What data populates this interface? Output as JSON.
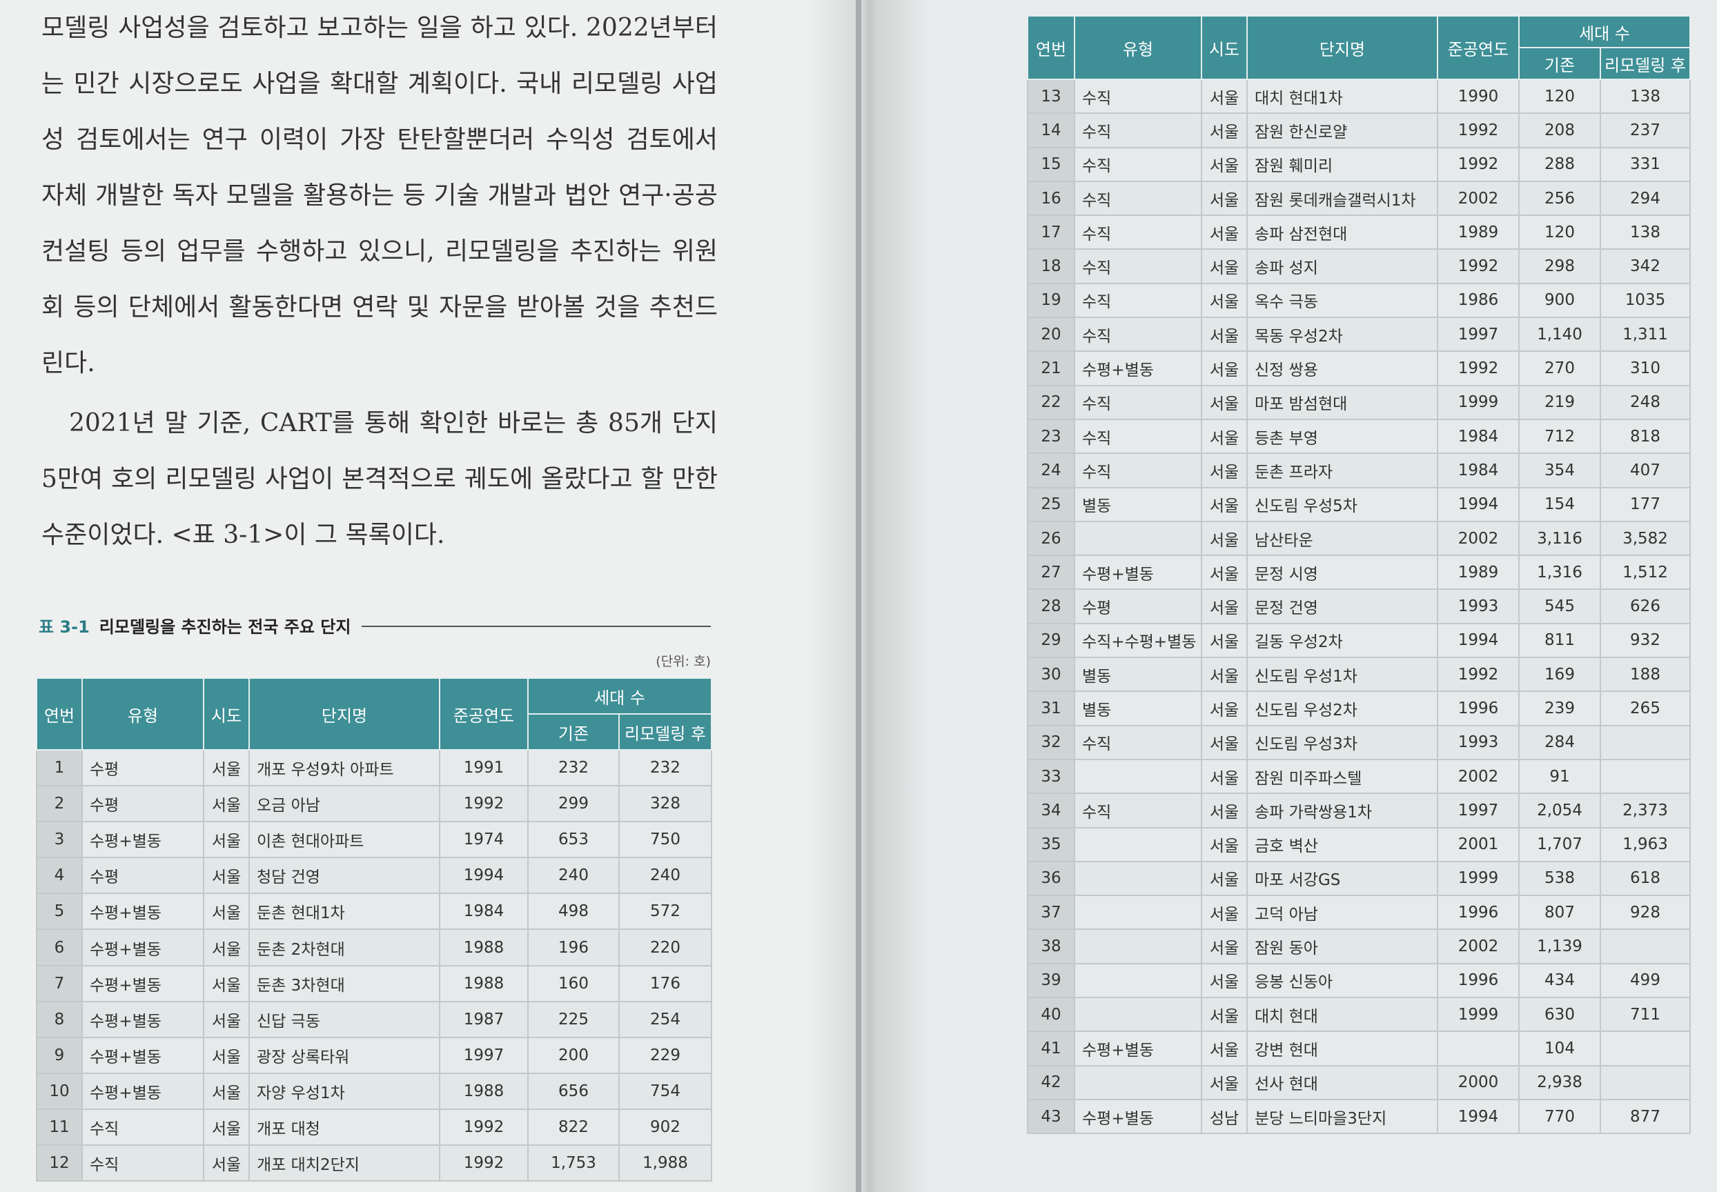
{
  "body": {
    "paragraph1": "모델링 사업성을 검토하고 보고하는 일을 하고 있다. 2022년부터는 민간 시장으로도 사업을 확대할 계획이다. 국내 리모델링 사업성 검토에서는 연구 이력이 가장 탄탄할뿐더러 수익성 검토에서 자체 개발한 독자 모델을 활용하는 등 기술 개발과 법안 연구·공공컨설팅 등의 업무를 수행하고 있으니, 리모델링을 추진하는 위원회 등의 단체에서 활동한다면 연락 및 자문을 받아볼 것을 추천드린다.",
    "paragraph2": "2021년 말 기준, CART를 통해 확인한 바로는 총 85개 단지 5만여 호의 리모델링 사업이 본격적으로 궤도에 올랐다고 할 만한 수준이었다. <표 3-1>이 그 목록이다."
  },
  "caption": {
    "number": "표 3-1",
    "title": "리모델링을 추진하는 전국 주요 단지",
    "unit": "(단위: 호)"
  },
  "headers": {
    "no": "연번",
    "type": "유형",
    "city": "시도",
    "name": "단지명",
    "year": "준공연도",
    "households": "세대 수",
    "existing": "기존",
    "after": "리모델링 후"
  },
  "left_rows": [
    {
      "no": "1",
      "type": "수평",
      "city": "서울",
      "name": "개포 우성9차 아파트",
      "year": "1991",
      "existing": "232",
      "after": "232"
    },
    {
      "no": "2",
      "type": "수평",
      "city": "서울",
      "name": "오금 아남",
      "year": "1992",
      "existing": "299",
      "after": "328"
    },
    {
      "no": "3",
      "type": "수평+별동",
      "city": "서울",
      "name": "이촌 현대아파트",
      "year": "1974",
      "existing": "653",
      "after": "750"
    },
    {
      "no": "4",
      "type": "수평",
      "city": "서울",
      "name": "청담 건영",
      "year": "1994",
      "existing": "240",
      "after": "240"
    },
    {
      "no": "5",
      "type": "수평+별동",
      "city": "서울",
      "name": "둔촌 현대1차",
      "year": "1984",
      "existing": "498",
      "after": "572"
    },
    {
      "no": "6",
      "type": "수평+별동",
      "city": "서울",
      "name": "둔촌 2차현대",
      "year": "1988",
      "existing": "196",
      "after": "220"
    },
    {
      "no": "7",
      "type": "수평+별동",
      "city": "서울",
      "name": "둔촌 3차현대",
      "year": "1988",
      "existing": "160",
      "after": "176"
    },
    {
      "no": "8",
      "type": "수평+별동",
      "city": "서울",
      "name": "신답 극동",
      "year": "1987",
      "existing": "225",
      "after": "254"
    },
    {
      "no": "9",
      "type": "수평+별동",
      "city": "서울",
      "name": "광장 상록타워",
      "year": "1997",
      "existing": "200",
      "after": "229"
    },
    {
      "no": "10",
      "type": "수평+별동",
      "city": "서울",
      "name": "자양 우성1차",
      "year": "1988",
      "existing": "656",
      "after": "754"
    },
    {
      "no": "11",
      "type": "수직",
      "city": "서울",
      "name": "개포 대청",
      "year": "1992",
      "existing": "822",
      "after": "902"
    },
    {
      "no": "12",
      "type": "수직",
      "city": "서울",
      "name": "개포 대치2단지",
      "year": "1992",
      "existing": "1,753",
      "after": "1,988"
    }
  ],
  "right_rows": [
    {
      "no": "13",
      "type": "수직",
      "city": "서울",
      "name": "대치 현대1차",
      "year": "1990",
      "existing": "120",
      "after": "138"
    },
    {
      "no": "14",
      "type": "수직",
      "city": "서울",
      "name": "잠원 한신로얄",
      "year": "1992",
      "existing": "208",
      "after": "237"
    },
    {
      "no": "15",
      "type": "수직",
      "city": "서울",
      "name": "잠원 훼미리",
      "year": "1992",
      "existing": "288",
      "after": "331"
    },
    {
      "no": "16",
      "type": "수직",
      "city": "서울",
      "name": "잠원 롯데캐슬갤럭시1차",
      "year": "2002",
      "existing": "256",
      "after": "294"
    },
    {
      "no": "17",
      "type": "수직",
      "city": "서울",
      "name": "송파 삼전현대",
      "year": "1989",
      "existing": "120",
      "after": "138"
    },
    {
      "no": "18",
      "type": "수직",
      "city": "서울",
      "name": "송파 성지",
      "year": "1992",
      "existing": "298",
      "after": "342"
    },
    {
      "no": "19",
      "type": "수직",
      "city": "서울",
      "name": "옥수 극동",
      "year": "1986",
      "existing": "900",
      "after": "1035"
    },
    {
      "no": "20",
      "type": "수직",
      "city": "서울",
      "name": "목동 우성2차",
      "year": "1997",
      "existing": "1,140",
      "after": "1,311"
    },
    {
      "no": "21",
      "type": "수평+별동",
      "city": "서울",
      "name": "신정 쌍용",
      "year": "1992",
      "existing": "270",
      "after": "310"
    },
    {
      "no": "22",
      "type": "수직",
      "city": "서울",
      "name": "마포 밤섬현대",
      "year": "1999",
      "existing": "219",
      "after": "248"
    },
    {
      "no": "23",
      "type": "수직",
      "city": "서울",
      "name": "등촌 부영",
      "year": "1984",
      "existing": "712",
      "after": "818"
    },
    {
      "no": "24",
      "type": "수직",
      "city": "서울",
      "name": "둔촌 프라자",
      "year": "1984",
      "existing": "354",
      "after": "407"
    },
    {
      "no": "25",
      "type": "별동",
      "city": "서울",
      "name": "신도림 우성5차",
      "year": "1994",
      "existing": "154",
      "after": "177"
    },
    {
      "no": "26",
      "type": "",
      "city": "서울",
      "name": "남산타운",
      "year": "2002",
      "existing": "3,116",
      "after": "3,582"
    },
    {
      "no": "27",
      "type": "수평+별동",
      "city": "서울",
      "name": "문정 시영",
      "year": "1989",
      "existing": "1,316",
      "after": "1,512"
    },
    {
      "no": "28",
      "type": "수평",
      "city": "서울",
      "name": "문정 건영",
      "year": "1993",
      "existing": "545",
      "after": "626"
    },
    {
      "no": "29",
      "type": "수직+수평+별동",
      "city": "서울",
      "name": "길동 우성2차",
      "year": "1994",
      "existing": "811",
      "after": "932"
    },
    {
      "no": "30",
      "type": "별동",
      "city": "서울",
      "name": "신도림 우성1차",
      "year": "1992",
      "existing": "169",
      "after": "188"
    },
    {
      "no": "31",
      "type": "별동",
      "city": "서울",
      "name": "신도림 우성2차",
      "year": "1996",
      "existing": "239",
      "after": "265"
    },
    {
      "no": "32",
      "type": "수직",
      "city": "서울",
      "name": "신도림 우성3차",
      "year": "1993",
      "existing": "284",
      "after": ""
    },
    {
      "no": "33",
      "type": "",
      "city": "서울",
      "name": "잠원 미주파스텔",
      "year": "2002",
      "existing": "91",
      "after": ""
    },
    {
      "no": "34",
      "type": "수직",
      "city": "서울",
      "name": "송파 가락쌍용1차",
      "year": "1997",
      "existing": "2,054",
      "after": "2,373"
    },
    {
      "no": "35",
      "type": "",
      "city": "서울",
      "name": "금호 벽산",
      "year": "2001",
      "existing": "1,707",
      "after": "1,963"
    },
    {
      "no": "36",
      "type": "",
      "city": "서울",
      "name": "마포 서강GS",
      "year": "1999",
      "existing": "538",
      "after": "618"
    },
    {
      "no": "37",
      "type": "",
      "city": "서울",
      "name": "고덕 아남",
      "year": "1996",
      "existing": "807",
      "after": "928"
    },
    {
      "no": "38",
      "type": "",
      "city": "서울",
      "name": "잠원 동아",
      "year": "2002",
      "existing": "1,139",
      "after": ""
    },
    {
      "no": "39",
      "type": "",
      "city": "서울",
      "name": "응봉 신동아",
      "year": "1996",
      "existing": "434",
      "after": "499"
    },
    {
      "no": "40",
      "type": "",
      "city": "서울",
      "name": "대치 현대",
      "year": "1999",
      "existing": "630",
      "after": "711"
    },
    {
      "no": "41",
      "type": "수평+별동",
      "city": "서울",
      "name": "강변 현대",
      "year": "",
      "existing": "104",
      "after": ""
    },
    {
      "no": "42",
      "type": "",
      "city": "서울",
      "name": "선사 현대",
      "year": "2000",
      "existing": "2,938",
      "after": ""
    },
    {
      "no": "43",
      "type": "수평+별동",
      "city": "성남",
      "name": "분당 느티마을3단지",
      "year": "1994",
      "existing": "770",
      "after": "877"
    }
  ]
}
